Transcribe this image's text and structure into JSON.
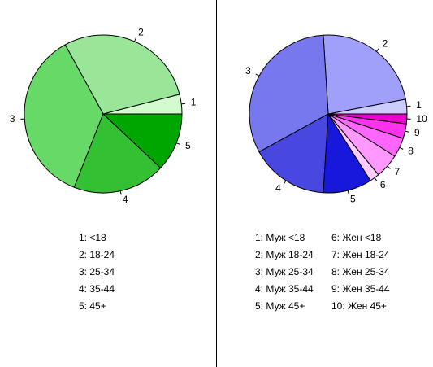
{
  "chart_data": [
    {
      "type": "pie",
      "categories": [
        "1",
        "2",
        "3",
        "4",
        "5"
      ],
      "values": [
        4,
        29,
        36,
        19,
        12
      ],
      "colors": [
        "#d4fbd0",
        "#99e699",
        "#66d966",
        "#33c033",
        "#00a600"
      ],
      "legend": [
        "1: <18",
        "2: 18-24",
        "3: 25-34",
        "4: 35-44",
        "5: 45+"
      ]
    },
    {
      "type": "pie",
      "categories": [
        "1",
        "2",
        "3",
        "4",
        "5",
        "6",
        "7",
        "8",
        "9",
        "10"
      ],
      "values": [
        3,
        23,
        32,
        16,
        10,
        2,
        5,
        4,
        3,
        2
      ],
      "colors": [
        "#ccccff",
        "#a0a0fb",
        "#7777ee",
        "#4848e0",
        "#1818dc",
        "#ffccff",
        "#ff99ff",
        "#ff66ff",
        "#ff33ee",
        "#ee00cc"
      ],
      "legend": [
        "1: Муж <18",
        "2: Муж 18-24",
        "3: Муж 25-34",
        "4: Муж 35-44",
        "5: Муж 45+",
        "6: Жен <18",
        "7: Жен 18-24",
        "8: Жен 25-34",
        "9: Жен 35-44",
        "10: Жен 45+"
      ]
    }
  ]
}
